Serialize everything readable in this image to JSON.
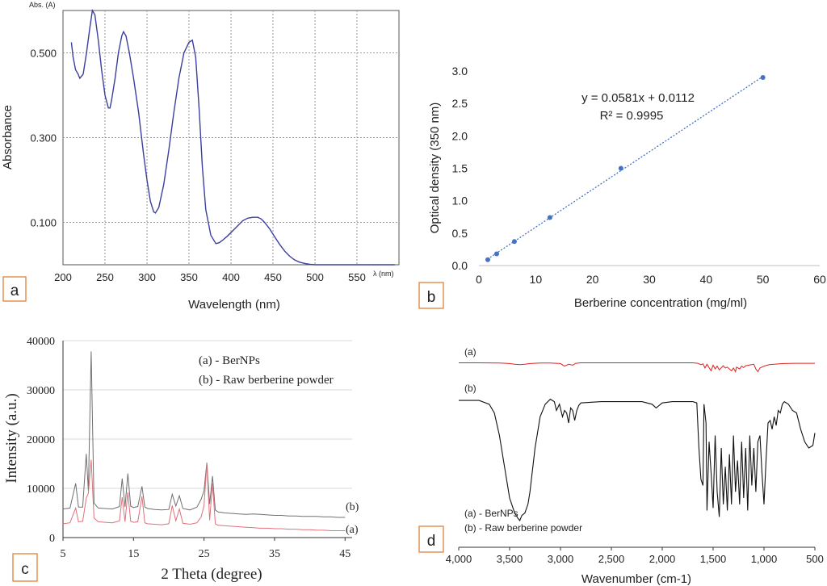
{
  "chart_data": [
    {
      "panel": "a",
      "type": "line",
      "title": "",
      "xlabel": "Wavelength (nm)",
      "ylabel": "Absorbance",
      "axis_unit_y": "Abs. (A)",
      "axis_unit_x": "λ (nm)",
      "xlim": [
        200,
        600
      ],
      "ylim": [
        0,
        0.6
      ],
      "x_ticks": [
        "200",
        "250",
        "300",
        "350",
        "400",
        "450",
        "500",
        "550"
      ],
      "y_ticks": [
        "0.100",
        "0.300",
        "0.500"
      ],
      "grid": true,
      "series": [
        {
          "color": "#3b3f9e",
          "x": [
            210,
            212,
            215,
            218,
            220,
            224,
            228,
            232,
            235,
            238,
            242,
            246,
            250,
            254,
            256,
            258,
            262,
            266,
            270,
            272,
            275,
            279,
            284,
            290,
            296,
            300,
            304,
            308,
            310,
            314,
            320,
            326,
            332,
            338,
            344,
            350,
            354,
            358,
            362,
            366,
            370,
            376,
            382,
            386,
            390,
            396,
            402,
            408,
            414,
            420,
            426,
            432,
            436,
            440,
            446,
            452,
            458,
            464,
            470,
            476,
            482,
            488,
            494,
            500,
            506,
            512,
            520,
            540,
            560,
            580,
            595
          ],
          "y": [
            0.525,
            0.49,
            0.46,
            0.45,
            0.44,
            0.45,
            0.5,
            0.56,
            0.6,
            0.59,
            0.53,
            0.46,
            0.4,
            0.37,
            0.37,
            0.39,
            0.44,
            0.5,
            0.54,
            0.55,
            0.54,
            0.5,
            0.44,
            0.36,
            0.26,
            0.2,
            0.15,
            0.125,
            0.122,
            0.135,
            0.19,
            0.27,
            0.36,
            0.44,
            0.5,
            0.525,
            0.53,
            0.49,
            0.37,
            0.23,
            0.13,
            0.07,
            0.05,
            0.052,
            0.058,
            0.068,
            0.08,
            0.092,
            0.104,
            0.11,
            0.112,
            0.112,
            0.108,
            0.1,
            0.085,
            0.066,
            0.048,
            0.032,
            0.02,
            0.011,
            0.006,
            0.003,
            0.001,
            0.0,
            0.0,
            0.0,
            0.0,
            0.0,
            0.0,
            0.0,
            0.0
          ]
        }
      ]
    },
    {
      "panel": "b",
      "type": "scatter",
      "title": "",
      "xlabel": "Berberine concentration (mg/ml)",
      "ylabel": "Optical density (350 nm)",
      "xlim": [
        0,
        60
      ],
      "ylim": [
        0,
        3.0
      ],
      "x_ticks": [
        "0",
        "10",
        "20",
        "30",
        "40",
        "50",
        "60"
      ],
      "y_ticks": [
        "0.0",
        "0.5",
        "1.0",
        "1.5",
        "2.0",
        "2.5",
        "3.0"
      ],
      "grid": false,
      "annotation_equation": "y = 0.0581x + 0.0112",
      "annotation_r2": "R² = 0.9995",
      "trendline": {
        "slope": 0.0581,
        "intercept": 0.0112,
        "x_from": 1.5,
        "x_to": 50
      },
      "series": [
        {
          "color": "#4472c4",
          "x": [
            1.56,
            3.125,
            6.25,
            12.5,
            25,
            50
          ],
          "y": [
            0.09,
            0.18,
            0.37,
            0.74,
            1.5,
            2.9
          ]
        }
      ]
    },
    {
      "panel": "c",
      "type": "line",
      "title": "",
      "xlabel": "2 Theta (degree)",
      "ylabel": "Intensity (a.u.)",
      "xlim": [
        5,
        46
      ],
      "ylim": [
        0,
        40000
      ],
      "x_ticks": [
        "5",
        "15",
        "25",
        "35",
        "45"
      ],
      "y_ticks": [
        "0",
        "10000",
        "20000",
        "30000",
        "40000"
      ],
      "grid": true,
      "legend": [
        "(a) - BerNPs",
        "(b) - Raw berberine powder"
      ],
      "series_labels": [
        "(a)",
        "(b)"
      ],
      "series": [
        {
          "name": "(a)",
          "color": "#e0707a",
          "x": [
            5,
            6,
            6.8,
            7.2,
            7.8,
            8.3,
            8.6,
            9.0,
            9.4,
            10,
            11,
            12,
            13,
            13.4,
            13.8,
            14.2,
            14.6,
            15,
            15.6,
            16.2,
            16.6,
            17,
            18,
            19,
            20,
            20.5,
            21,
            21.5,
            22,
            23,
            24,
            24.6,
            25,
            25.4,
            25.8,
            26.2,
            26.6,
            27,
            28,
            29,
            30,
            31,
            32,
            33,
            34,
            35,
            36,
            37,
            38,
            39,
            40,
            41,
            42,
            43,
            44,
            45
          ],
          "y": [
            2800,
            3000,
            6000,
            3200,
            3300,
            8000,
            9000,
            15800,
            4000,
            3200,
            3100,
            3000,
            3400,
            8200,
            3200,
            9200,
            3300,
            3100,
            3200,
            8400,
            3000,
            2800,
            2700,
            2600,
            2800,
            6500,
            3400,
            5800,
            2900,
            2700,
            3000,
            4200,
            6500,
            15000,
            3500,
            11000,
            2800,
            2500,
            2400,
            2300,
            2200,
            2100,
            2000,
            1900,
            1900,
            1800,
            1800,
            1700,
            1700,
            1600,
            1600,
            1500,
            1500,
            1400,
            1400,
            1400
          ]
        },
        {
          "name": "(b)",
          "color": "#707070",
          "x": [
            5,
            6,
            6.8,
            7.2,
            7.8,
            8.3,
            8.6,
            9.0,
            9.4,
            10,
            11,
            12,
            13,
            13.4,
            13.8,
            14.2,
            14.6,
            15,
            15.6,
            16.2,
            16.6,
            17,
            18,
            19,
            20,
            20.5,
            21,
            21.5,
            22,
            23,
            24,
            24.6,
            25,
            25.4,
            25.8,
            26.2,
            26.6,
            27,
            28,
            29,
            30,
            31,
            32,
            33,
            34,
            35,
            36,
            37,
            38,
            39,
            40,
            41,
            42,
            43,
            44,
            45
          ],
          "y": [
            5800,
            6000,
            11000,
            6200,
            6200,
            17000,
            9500,
            37800,
            7000,
            6000,
            5900,
            5800,
            6300,
            12000,
            6200,
            13000,
            6400,
            6100,
            6300,
            10400,
            6200,
            5900,
            5700,
            5600,
            5700,
            8800,
            6400,
            8500,
            5900,
            5600,
            6200,
            7800,
            9500,
            15200,
            6800,
            12500,
            5600,
            5200,
            5000,
            4900,
            4800,
            4700,
            4800,
            4700,
            4600,
            4500,
            4500,
            4400,
            4400,
            4300,
            4300,
            4300,
            4200,
            4200,
            4100,
            4100
          ]
        }
      ]
    },
    {
      "panel": "d",
      "type": "line",
      "title": "",
      "xlabel": "Wavenumber (cm-1)",
      "ylabel": "",
      "xlim": [
        4000,
        500
      ],
      "x_ticks": [
        "4,000",
        "3,500",
        "3,000",
        "2,500",
        "2,000",
        "1,500",
        "1,000",
        "500"
      ],
      "legend": [
        "(a) - BerNPs",
        "(b) - Raw berberine powder"
      ],
      "series_labels": [
        "(a)",
        "(b)"
      ],
      "series": [
        {
          "name": "(a)",
          "color": "#e02020",
          "x": [
            4000,
            3800,
            3600,
            3500,
            3450,
            3400,
            3350,
            3300,
            3200,
            3100,
            3000,
            2960,
            2920,
            2880,
            2850,
            2800,
            2600,
            2400,
            2200,
            2000,
            1800,
            1700,
            1650,
            1620,
            1600,
            1580,
            1560,
            1520,
            1500,
            1480,
            1460,
            1440,
            1400,
            1380,
            1360,
            1320,
            1300,
            1280,
            1270,
            1240,
            1220,
            1200,
            1180,
            1150,
            1100,
            1080,
            1060,
            1040,
            1000,
            950,
            900,
            850,
            800,
            700,
            600,
            500
          ],
          "y": [
            0.02,
            0.02,
            0.03,
            0.06,
            0.1,
            0.12,
            0.1,
            0.06,
            0.03,
            0.03,
            0.06,
            0.2,
            0.1,
            0.15,
            0.05,
            0.02,
            0.02,
            0.02,
            0.02,
            0.02,
            0.02,
            0.02,
            0.05,
            0.12,
            0.08,
            0.3,
            0.1,
            0.45,
            0.15,
            0.35,
            0.2,
            0.4,
            0.18,
            0.3,
            0.25,
            0.45,
            0.3,
            0.5,
            0.25,
            0.35,
            0.2,
            0.28,
            0.18,
            0.15,
            0.1,
            0.35,
            0.5,
            0.3,
            0.2,
            0.12,
            0.1,
            0.08,
            0.06,
            0.05,
            0.05,
            0.05
          ]
        },
        {
          "name": "(b)",
          "color": "#111111",
          "x": [
            4000,
            3900,
            3800,
            3700,
            3650,
            3600,
            3550,
            3500,
            3450,
            3420,
            3400,
            3380,
            3350,
            3320,
            3300,
            3250,
            3200,
            3150,
            3100,
            3060,
            3040,
            3010,
            2980,
            2960,
            2940,
            2920,
            2900,
            2880,
            2860,
            2840,
            2820,
            2800,
            2600,
            2400,
            2200,
            2100,
            2060,
            2000,
            1900,
            1800,
            1700,
            1660,
            1640,
            1620,
            1600,
            1590,
            1570,
            1560,
            1540,
            1520,
            1500,
            1480,
            1460,
            1440,
            1420,
            1400,
            1380,
            1360,
            1340,
            1320,
            1300,
            1280,
            1260,
            1240,
            1220,
            1200,
            1180,
            1160,
            1140,
            1120,
            1100,
            1080,
            1060,
            1040,
            1020,
            1000,
            980,
            960,
            940,
            920,
            900,
            880,
            860,
            840,
            820,
            800,
            760,
            720,
            680,
            640,
            600,
            560,
            520,
            500
          ],
          "y": [
            0.02,
            0.02,
            0.02,
            0.05,
            0.12,
            0.3,
            0.55,
            0.8,
            0.92,
            0.96,
            0.98,
            0.94,
            0.92,
            0.85,
            0.75,
            0.4,
            0.15,
            0.05,
            0.01,
            0.03,
            0.1,
            0.05,
            0.15,
            0.1,
            0.12,
            0.2,
            0.08,
            0.1,
            0.18,
            0.1,
            0.06,
            0.04,
            0.03,
            0.03,
            0.03,
            0.05,
            0.08,
            0.04,
            0.03,
            0.03,
            0.03,
            0.04,
            0.4,
            0.65,
            0.7,
            0.05,
            0.2,
            0.9,
            0.35,
            0.6,
            0.88,
            0.3,
            0.75,
            0.95,
            0.4,
            0.85,
            0.55,
            0.9,
            0.45,
            0.85,
            0.3,
            0.75,
            0.5,
            0.85,
            0.35,
            0.8,
            0.4,
            0.9,
            0.3,
            0.7,
            0.4,
            0.75,
            0.35,
            0.3,
            0.6,
            0.85,
            0.5,
            0.2,
            0.18,
            0.25,
            0.15,
            0.22,
            0.1,
            0.12,
            0.05,
            0.03,
            0.05,
            0.1,
            0.12,
            0.25,
            0.35,
            0.4,
            0.38,
            0.28
          ]
        }
      ]
    }
  ],
  "panel_labels": [
    "a",
    "b",
    "c",
    "d"
  ],
  "colors": {
    "panel_label_border": "#e0803a",
    "grid": "#9a9a9a"
  }
}
